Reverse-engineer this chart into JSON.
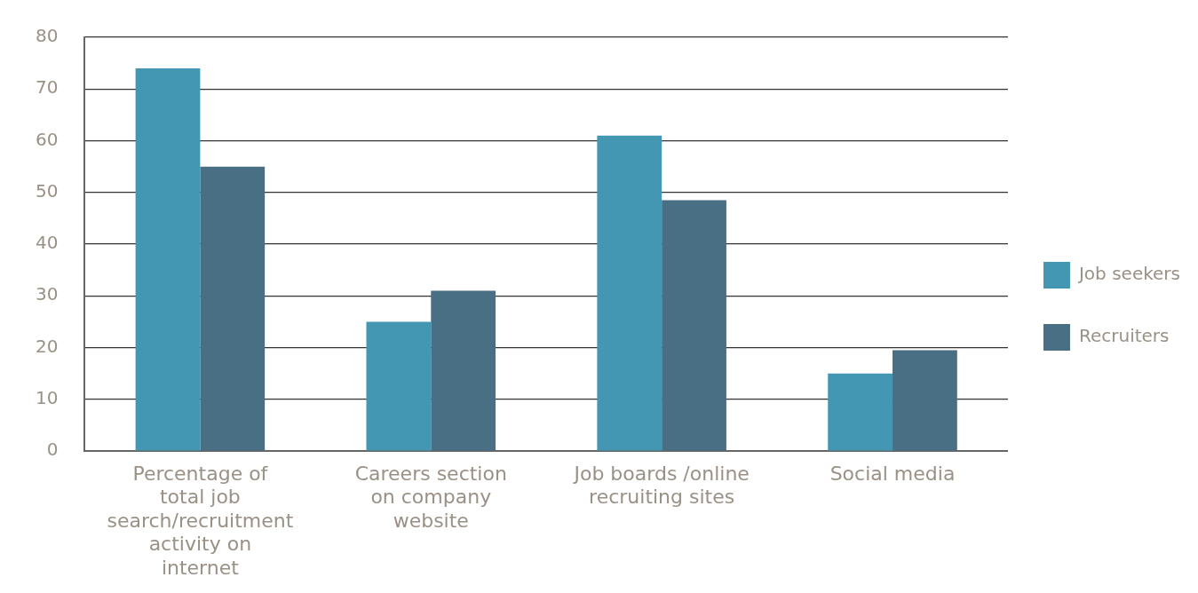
{
  "chart_data": {
    "type": "bar",
    "categories": [
      "Percentage of total job search/recruitment activity on internet",
      "Careers section on company website",
      "Job boards /online recruiting sites",
      "Social media"
    ],
    "series": [
      {
        "name": "Job seekers",
        "color": "#4397b2",
        "values": [
          74,
          25,
          61,
          15
        ]
      },
      {
        "name": "Recruiters",
        "color": "#486f84",
        "values": [
          55,
          31,
          48.5,
          19.5
        ]
      }
    ],
    "ylim": [
      0,
      80
    ],
    "yticks": [
      0,
      10,
      20,
      30,
      40,
      50,
      60,
      70,
      80
    ],
    "grid": "y",
    "legend": "right"
  }
}
